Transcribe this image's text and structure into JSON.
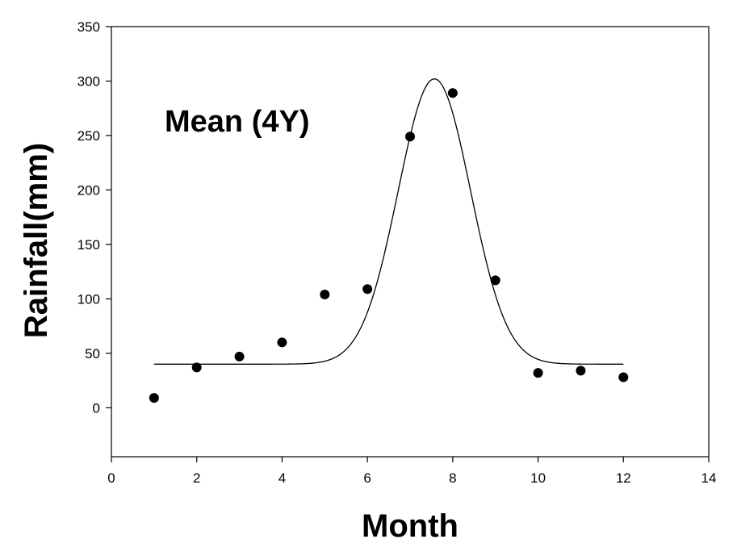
{
  "chart_data": {
    "type": "scatter",
    "title": "",
    "annotation": "Mean (4Y)",
    "xlabel": "Month",
    "ylabel": "Rainfall(mm)",
    "xlim": [
      0,
      14
    ],
    "ylim": [
      -45,
      350
    ],
    "x_ticks": [
      0,
      2,
      4,
      6,
      8,
      10,
      12,
      14
    ],
    "y_ticks": [
      0,
      50,
      100,
      150,
      200,
      250,
      300,
      350
    ],
    "grid": false,
    "legend": "none",
    "series": [
      {
        "type": "scatter",
        "x": [
          1,
          2,
          3,
          4,
          5,
          6,
          7,
          8,
          9,
          10,
          11,
          12
        ],
        "y": [
          9,
          37,
          47,
          60,
          104,
          109,
          249,
          289,
          117,
          32,
          34,
          28
        ],
        "color": "#000000"
      },
      {
        "type": "line",
        "fit": "gaussian",
        "x_range": [
          1,
          12
        ],
        "baseline": 40,
        "amplitude": 262,
        "center": 7.57,
        "sigma": 0.85,
        "color": "#000000"
      }
    ]
  }
}
